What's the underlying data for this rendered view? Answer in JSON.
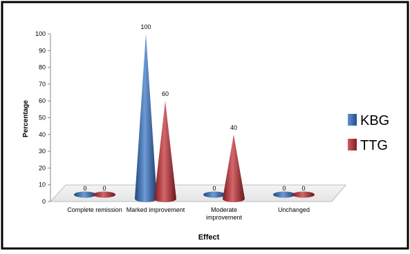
{
  "chart_data": {
    "type": "bar",
    "style": "3d-cone",
    "categories": [
      "Complete remission",
      "Marked improvement",
      "Moderate improvement",
      "Unchanged"
    ],
    "category_display_lines": [
      [
        "Complete remission"
      ],
      [
        "Marked improvement"
      ],
      [
        "Moderate",
        "improvement"
      ],
      [
        "Unchanged"
      ]
    ],
    "series": [
      {
        "name": "KBG",
        "values": [
          0,
          100,
          0,
          0
        ],
        "color": "#2f6fc4"
      },
      {
        "name": "TTG",
        "values": [
          0,
          60,
          40,
          0
        ],
        "color": "#c0262c"
      }
    ],
    "xlabel": "Effect",
    "ylabel": "Percentage",
    "ylim": [
      0,
      100
    ],
    "yticks": [
      0,
      10,
      20,
      30,
      40,
      50,
      60,
      70,
      80,
      90,
      100
    ],
    "data_labels": true,
    "grid": false,
    "legend_position": "right"
  }
}
